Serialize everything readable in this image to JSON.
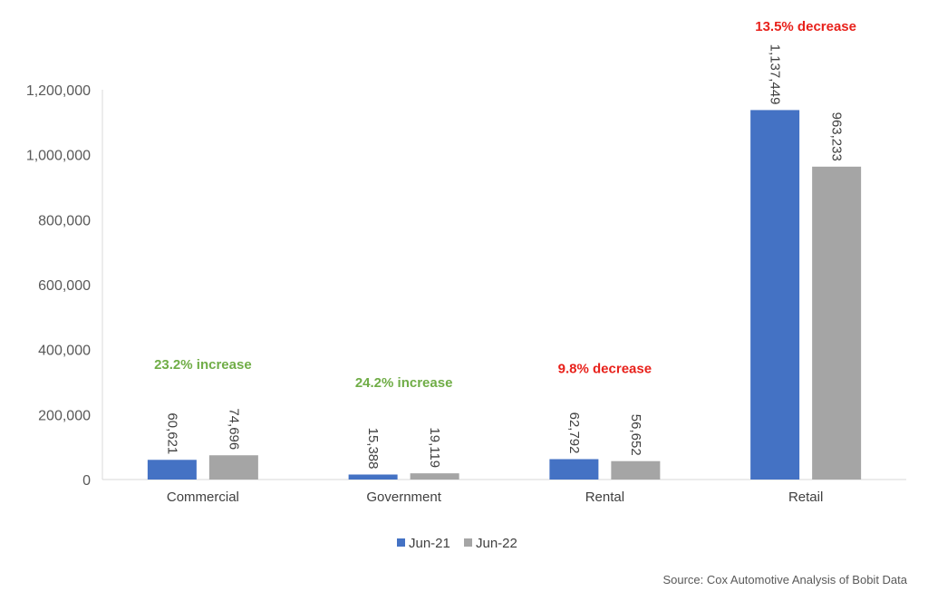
{
  "chart_data": {
    "type": "bar",
    "categories": [
      "Commercial",
      "Government",
      "Rental",
      "Retail"
    ],
    "series": [
      {
        "name": "Jun-21",
        "values": [
          60621,
          15388,
          62792,
          1137449
        ],
        "color": "#4472c4"
      },
      {
        "name": "Jun-22",
        "values": [
          74696,
          19119,
          56652,
          963233
        ],
        "color": "#a5a5a5"
      }
    ],
    "data_labels": [
      [
        "60,621",
        "15,388",
        "62,792",
        "1,137,449"
      ],
      [
        "74,696",
        "19,119",
        "56,652",
        "963,233"
      ]
    ],
    "annotations": [
      {
        "category": "Commercial",
        "text": "23.2% increase",
        "color": "#70ad47"
      },
      {
        "category": "Government",
        "text": "24.2% increase",
        "color": "#70ad47"
      },
      {
        "category": "Rental",
        "text": "9.8% decrease",
        "color": "#e8211b"
      },
      {
        "category": "Retail",
        "text": "13.5% decrease",
        "color": "#e8211b"
      }
    ],
    "ylim": [
      0,
      1200000
    ],
    "yticks": [
      0,
      200000,
      400000,
      600000,
      800000,
      1000000,
      1200000
    ],
    "ytick_labels": [
      "0",
      "200,000",
      "400,000",
      "600,000",
      "800,000",
      "1,000,000",
      "1,200,000"
    ],
    "grid": false,
    "legend_position": "bottom",
    "title": "",
    "xlabel": "",
    "ylabel": ""
  },
  "source_note": "Source: Cox Automotive Analysis of Bobit Data"
}
